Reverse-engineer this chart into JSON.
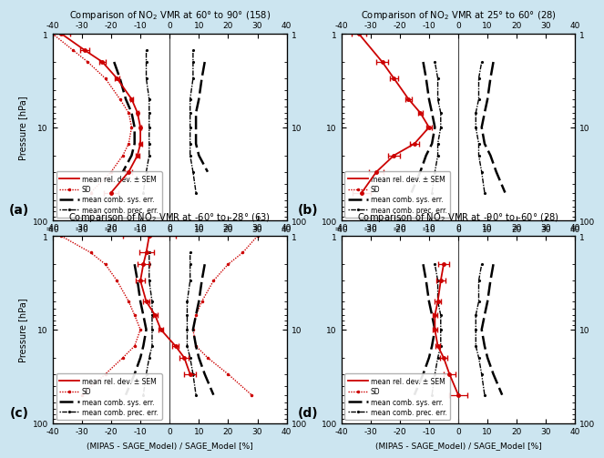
{
  "titles": [
    "Comparison of NO$_2$ VMR at 60° to 90° (158)",
    "Comparison of NO$_2$ VMR at 25° to 60° (28)",
    "Comparison of NO$_2$ VMR at -60° to -28° (63)",
    "Comparison of NO$_2$ VMR at -90° to -60° (28)"
  ],
  "labels": [
    "(a)",
    "(b)",
    "(c)",
    "(d)"
  ],
  "xlim": [
    -40,
    40
  ],
  "xticks": [
    -40,
    -30,
    -20,
    -10,
    0,
    10,
    20,
    30,
    40
  ],
  "yticks": [
    1,
    10,
    100
  ],
  "ylabel": "Pressure [hPa]",
  "xlabel": "(MIPAS - SAGE_Model) / SAGE_Model [%]",
  "color_red": "#cc0000",
  "color_black": "#000000",
  "bg_color": "#cce5f0",
  "panel_panels": [
    {
      "pressure": [
        1.0,
        1.5,
        2.0,
        3.0,
        5.0,
        7.0,
        10.0,
        15.0,
        20.0,
        30.0,
        50.0
      ],
      "mean": [
        -37,
        -29,
        -23,
        -18,
        -13,
        -11,
        -10,
        -10,
        -11,
        -14,
        -20
      ],
      "sem": [
        3.0,
        1.5,
        1.2,
        0.8,
        0.5,
        0.4,
        0.4,
        0.5,
        0.6,
        1.2,
        2.5
      ],
      "sd_neg": [
        -40,
        -33,
        -28,
        -22,
        -17,
        -14,
        -13,
        -14,
        -16,
        -20,
        -27
      ],
      "sd_pos": [
        null,
        null,
        null,
        null,
        null,
        null,
        null,
        null,
        null,
        null,
        null
      ],
      "sys_neg": [
        null,
        null,
        -19,
        -17,
        -15,
        -13,
        -12,
        -12,
        -13,
        -16,
        null
      ],
      "sys_pos": [
        null,
        null,
        12,
        11,
        10,
        9,
        9,
        9,
        10,
        13,
        null
      ],
      "prec_neg": [
        null,
        -8,
        -8,
        -8,
        -7,
        -7,
        -7,
        -7,
        -7,
        -8,
        -9
      ],
      "prec_pos": [
        null,
        8,
        8,
        8,
        7,
        7,
        7,
        7,
        7,
        8,
        9
      ]
    },
    {
      "pressure": [
        1.0,
        2.0,
        3.0,
        5.0,
        7.0,
        10.0,
        15.0,
        20.0,
        30.0,
        50.0
      ],
      "mean": [
        -34,
        -26,
        -22,
        -17,
        -13,
        -10,
        -15,
        -22,
        -28,
        -33
      ],
      "sem": [
        2.5,
        2.0,
        1.5,
        1.0,
        0.8,
        0.8,
        1.5,
        2.0,
        2.5,
        3.0
      ],
      "sd_neg": [
        null,
        null,
        null,
        null,
        null,
        null,
        null,
        null,
        null,
        null
      ],
      "sd_pos": [
        null,
        null,
        null,
        null,
        null,
        null,
        null,
        null,
        null,
        null
      ],
      "sys_neg": [
        null,
        -12,
        -11,
        -10,
        -9,
        -8,
        -9,
        -11,
        -13,
        -16
      ],
      "sys_pos": [
        null,
        12,
        11,
        10,
        9,
        8,
        9,
        11,
        13,
        16
      ],
      "prec_neg": [
        null,
        -8,
        -7,
        -7,
        -6,
        -6,
        -7,
        -7,
        -8,
        -9
      ],
      "prec_pos": [
        null,
        8,
        7,
        7,
        6,
        6,
        7,
        7,
        8,
        9
      ]
    },
    {
      "pressure": [
        1.0,
        1.5,
        2.0,
        3.0,
        5.0,
        7.0,
        10.0,
        15.0,
        20.0,
        30.0,
        50.0
      ],
      "mean": [
        -7,
        -8,
        -9,
        -10,
        -8,
        -5,
        -3,
        2,
        5,
        7,
        null
      ],
      "sem": [
        9.0,
        2.5,
        2.0,
        1.5,
        1.0,
        0.8,
        0.8,
        1.0,
        1.5,
        2.0,
        null
      ],
      "sd_neg": [
        -37,
        -27,
        -22,
        -18,
        -14,
        -12,
        -10,
        -12,
        -16,
        -22,
        -30
      ],
      "sd_pos": [
        30,
        25,
        20,
        15,
        11,
        9,
        8,
        9,
        13,
        20,
        28
      ],
      "sys_neg": [
        null,
        null,
        -12,
        -11,
        -10,
        -9,
        -8,
        -9,
        -10,
        -12,
        -15
      ],
      "sys_pos": [
        null,
        null,
        12,
        11,
        10,
        9,
        8,
        9,
        10,
        12,
        15
      ],
      "prec_neg": [
        null,
        -7,
        -7,
        -7,
        -6,
        -6,
        -6,
        -6,
        -7,
        -8,
        -9
      ],
      "prec_pos": [
        null,
        7,
        7,
        7,
        6,
        6,
        6,
        6,
        7,
        8,
        9
      ]
    },
    {
      "pressure": [
        2.0,
        3.0,
        5.0,
        7.0,
        10.0,
        15.0,
        20.0,
        30.0,
        50.0
      ],
      "mean": [
        -5,
        -6,
        -7,
        -8,
        -8,
        -7,
        -5,
        -3,
        0
      ],
      "sem": [
        2.0,
        1.5,
        1.0,
        0.8,
        0.8,
        0.8,
        1.2,
        2.0,
        3.0
      ],
      "sd_neg": [
        null,
        null,
        null,
        null,
        null,
        null,
        null,
        null,
        null
      ],
      "sd_pos": [
        null,
        null,
        null,
        null,
        null,
        null,
        null,
        null,
        null
      ],
      "sys_neg": [
        -12,
        -11,
        -10,
        -9,
        -8,
        -9,
        -10,
        -12,
        -15
      ],
      "sys_pos": [
        12,
        11,
        10,
        9,
        8,
        9,
        10,
        12,
        15
      ],
      "prec_neg": [
        -8,
        -7,
        -7,
        -6,
        -6,
        -6,
        -7,
        -8,
        -9
      ],
      "prec_pos": [
        8,
        7,
        7,
        6,
        6,
        6,
        7,
        8,
        9
      ]
    }
  ]
}
